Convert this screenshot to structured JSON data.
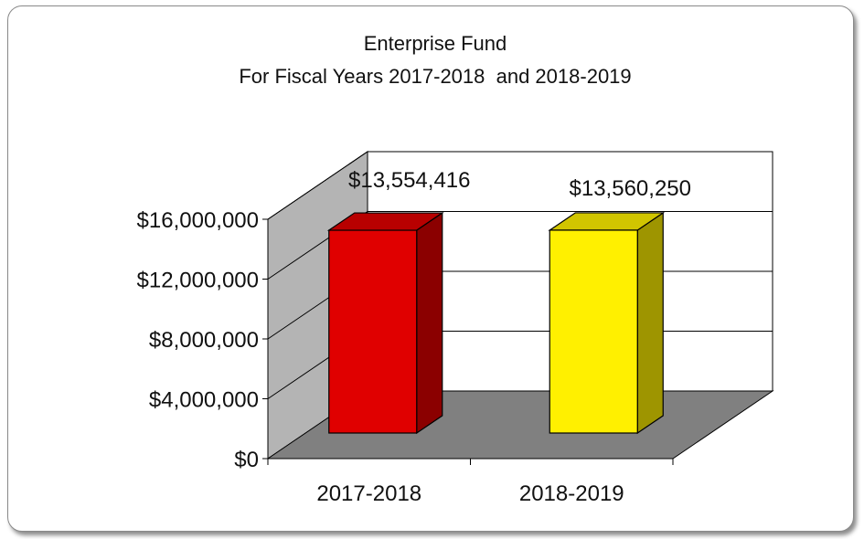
{
  "chart_data": {
    "type": "bar",
    "title_lines": [
      "Enterprise Fund",
      "For Fiscal Years 2017-2018  and 2018-2019"
    ],
    "categories": [
      "2017-2018",
      "2018-2019"
    ],
    "values": [
      13554416,
      13560250
    ],
    "data_labels": [
      "$13,554,416",
      "$13,560,250"
    ],
    "colors": [
      "#e00000",
      "#fff000"
    ],
    "ylim": [
      0,
      16000000
    ],
    "yticks": [
      0,
      4000000,
      8000000,
      12000000,
      16000000
    ],
    "ytick_labels": [
      "$0",
      "$4,000,000",
      "$8,000,000",
      "$12,000,000",
      "$16,000,000"
    ],
    "xlabel": "",
    "ylabel": "",
    "grid": true,
    "legend": "none",
    "style": "3d-column"
  }
}
